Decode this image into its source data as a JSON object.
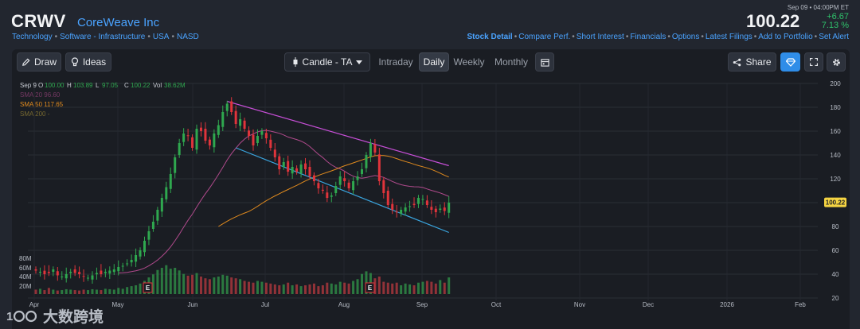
{
  "header": {
    "symbol": "CRWV",
    "company": "CoreWeave Inc",
    "classification": [
      "Technology",
      "Software - Infrastructure",
      "USA",
      "NASD"
    ],
    "datetime": "Sep 09 • 04:00PM ET",
    "price": "100.22",
    "change": "+6.67",
    "change_pct": "7.13 %",
    "links": [
      "Stock Detail",
      "Compare Perf.",
      "Short Interest",
      "Financials",
      "Options",
      "Latest Filings",
      "Add to Portfolio",
      "Set Alert"
    ]
  },
  "toolbar": {
    "draw_label": "Draw",
    "ideas_label": "Ideas",
    "chart_type": "Candle - TA",
    "timeframes": [
      "Intraday",
      "Daily",
      "Weekly",
      "Monthly"
    ],
    "active_timeframe": "Daily",
    "share_label": "Share"
  },
  "watermark": "大数跨境",
  "colors": {
    "up": "#2fa84f",
    "down": "#e0343b",
    "sma20": "#b04a8c",
    "sma50": "#e08a1e",
    "sma200": "#b39a38",
    "trend_upper": "#c84fd8",
    "trend_lower": "#3aa6e0",
    "price_tag": "#f5d442",
    "link": "#4aa3ff"
  },
  "chart_data": {
    "type": "candlestick",
    "ohlc_legend": {
      "date": "Sep 9",
      "o": "100.00",
      "h": "103.89",
      "l": "97.05",
      "c": "100.22",
      "vol": "38.62M"
    },
    "sma_legend": [
      {
        "label": "SMA 20",
        "value": "96.60"
      },
      {
        "label": "SMA 50",
        "value": "117.65"
      },
      {
        "label": "SMA 200",
        "value": "-"
      }
    ],
    "y_ticks": [
      200,
      180,
      160,
      140,
      120,
      100,
      80,
      60,
      40,
      20
    ],
    "ylim": [
      15,
      205
    ],
    "last_price_label": "100.22",
    "volume_ticks": [
      "80M",
      "60M",
      "40M",
      "20M"
    ],
    "x_labels": [
      "Apr",
      "May",
      "Jun",
      "Jul",
      "Aug",
      "Sep",
      "Oct",
      "Nov",
      "Dec",
      "2026",
      "Feb"
    ],
    "earnings_markers": [
      "E",
      "E"
    ],
    "closes": [
      43,
      42,
      40,
      41,
      44,
      39,
      38,
      40,
      42,
      41,
      40,
      38,
      37,
      39,
      41,
      40,
      42,
      43,
      44,
      46,
      47,
      49,
      52,
      56,
      60,
      68,
      76,
      84,
      94,
      104,
      113,
      124,
      138,
      150,
      158,
      156,
      146,
      162,
      160,
      152,
      148,
      158,
      165,
      176,
      183,
      176,
      166,
      170,
      162,
      156,
      148,
      156,
      160,
      154,
      146,
      138,
      128,
      134,
      126,
      130,
      126,
      132,
      128,
      122,
      118,
      112,
      110,
      104,
      106,
      114,
      122,
      118,
      112,
      118,
      122,
      128,
      140,
      150,
      142,
      118,
      108,
      98,
      94,
      92,
      94,
      96,
      97,
      98,
      104,
      103,
      98,
      94,
      92,
      95,
      93,
      100
    ],
    "volumes": [
      10,
      12,
      9,
      14,
      10,
      8,
      9,
      11,
      10,
      9,
      8,
      10,
      9,
      11,
      10,
      9,
      12,
      11,
      10,
      14,
      12,
      16,
      18,
      20,
      24,
      30,
      38,
      45,
      55,
      60,
      66,
      58,
      60,
      54,
      46,
      42,
      44,
      48,
      40,
      36,
      34,
      38,
      40,
      44,
      42,
      38,
      36,
      34,
      30,
      28,
      26,
      30,
      28,
      26,
      24,
      22,
      20,
      22,
      26,
      20,
      22,
      18,
      20,
      22,
      24,
      18,
      20,
      26,
      24,
      22,
      28,
      26,
      24,
      30,
      34,
      46,
      52,
      48,
      36,
      40,
      28,
      26,
      24,
      26,
      20,
      24,
      22,
      20,
      26,
      28,
      30,
      28,
      24,
      32,
      26,
      38
    ]
  }
}
